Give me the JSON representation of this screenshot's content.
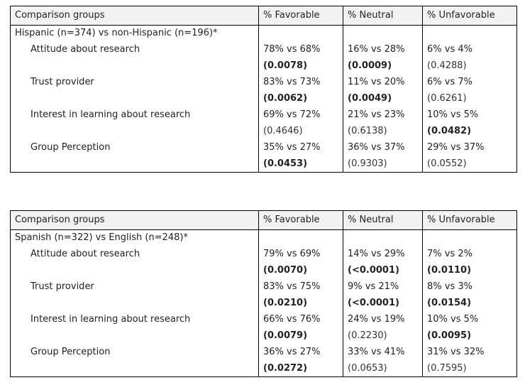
{
  "tables": [
    {
      "headers": [
        "Comparison groups",
        "% Favorable",
        "% Neutral",
        "% Unfavorable"
      ],
      "group": "Hispanic (n=374) vs non-Hispanic (n=196)*",
      "rows": [
        {
          "label": "Attitude about research",
          "values": [
            "78% vs 68%",
            "16% vs 28%",
            "6% vs 4%"
          ],
          "pvalues": [
            "(0.0078)",
            "(0.0009)",
            "(0.4288)"
          ],
          "significant": [
            true,
            true,
            false
          ]
        },
        {
          "label": "Trust provider",
          "values": [
            "83% vs 73%",
            "11% vs 20%",
            "6% vs 7%"
          ],
          "pvalues": [
            "(0.0062)",
            "(0.0049)",
            "(0.6261)"
          ],
          "significant": [
            true,
            true,
            false
          ]
        },
        {
          "label": "Interest in learning about research",
          "values": [
            "69% vs 72%",
            "21% vs 23%",
            "10% vs 5%"
          ],
          "pvalues": [
            "(0.4646)",
            "(0.6138)",
            "(0.0482)"
          ],
          "significant": [
            false,
            false,
            true
          ]
        },
        {
          "label": "Group Perception",
          "values": [
            "35% vs 27%",
            "36% vs 37%",
            "29% vs 37%"
          ],
          "pvalues": [
            "(0.0453)",
            "(0.9303)",
            "(0.0552)"
          ],
          "significant": [
            true,
            false,
            false
          ]
        }
      ]
    },
    {
      "headers": [
        "Comparison groups",
        "% Favorable",
        "% Neutral",
        "% Unfavorable"
      ],
      "group": "Spanish (n=322) vs English (n=248)*",
      "rows": [
        {
          "label": "Attitude about research",
          "values": [
            "79% vs 69%",
            "14% vs 29%",
            "7% vs 2%"
          ],
          "pvalues": [
            "(0.0070)",
            "(<0.0001)",
            "(0.0110)"
          ],
          "significant": [
            true,
            true,
            true
          ]
        },
        {
          "label": "Trust provider",
          "values": [
            "83% vs 75%",
            "9% vs 21%",
            "8% vs 3%"
          ],
          "pvalues": [
            "(0.0210)",
            "(<0.0001)",
            "(0.0154)"
          ],
          "significant": [
            true,
            true,
            true
          ]
        },
        {
          "label": "Interest in learning about research",
          "values": [
            "66% vs 76%",
            "24% vs 19%",
            "10% vs 5%"
          ],
          "pvalues": [
            "(0.0079)",
            "(0.2230)",
            "(0.0095)"
          ],
          "significant": [
            true,
            false,
            true
          ]
        },
        {
          "label": "Group Perception",
          "values": [
            "36% vs 27%",
            "33% vs 41%",
            "31% vs 32%"
          ],
          "pvalues": [
            "(0.0272)",
            "(0.0653)",
            "(0.7595)"
          ],
          "significant": [
            true,
            false,
            false
          ]
        }
      ]
    }
  ]
}
